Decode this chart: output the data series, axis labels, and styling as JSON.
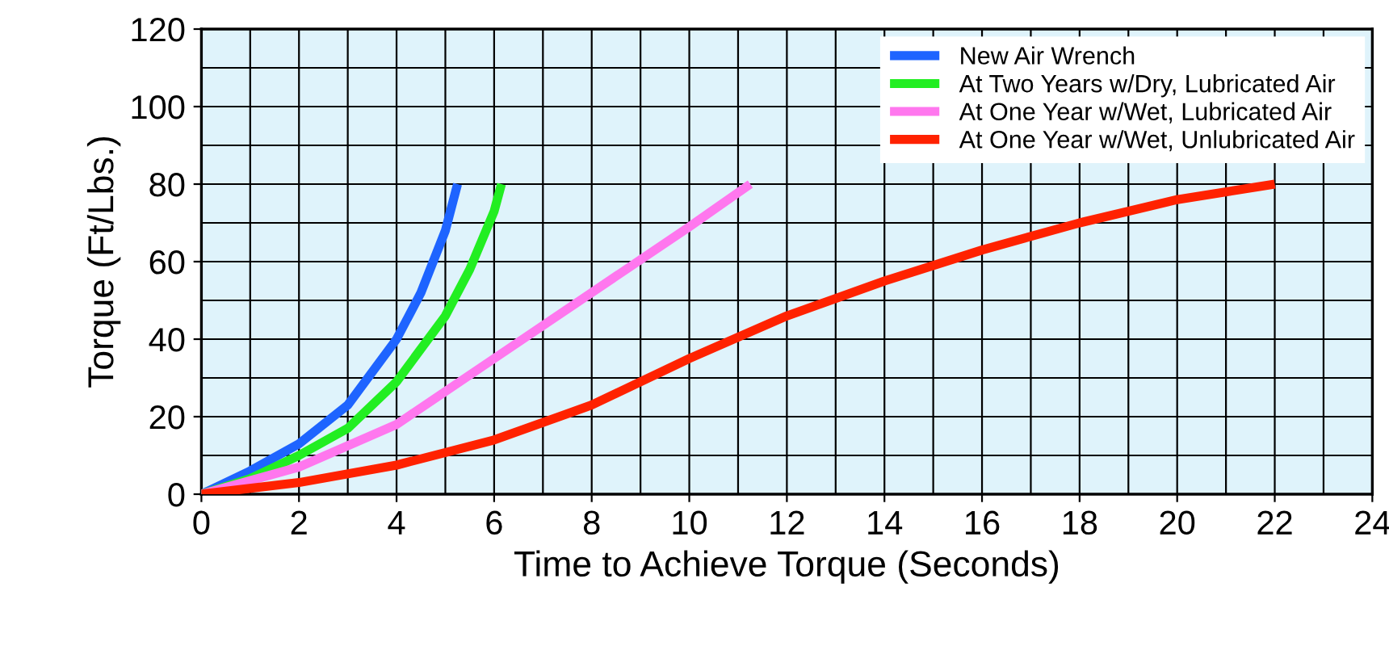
{
  "chart_data": {
    "type": "line",
    "xlabel": "Time to Achieve Torque (Seconds)",
    "ylabel": "Torque (Ft/Lbs.)",
    "xlim": [
      0,
      24
    ],
    "xticks": [
      0,
      2,
      4,
      6,
      8,
      10,
      12,
      14,
      16,
      18,
      20,
      22,
      24
    ],
    "ylim": [
      0,
      120
    ],
    "yticks": [
      0,
      20,
      40,
      60,
      80,
      100,
      120
    ],
    "grid": true,
    "legend": "top right",
    "marker": "none",
    "line_style": "solid",
    "series": [
      {
        "name": "New Air Wrench",
        "color": "#1e64ff",
        "x": [
          0,
          1,
          2,
          3,
          4,
          4.5,
          5,
          5.25
        ],
        "values": [
          0,
          6,
          13,
          23,
          40,
          52,
          68,
          80
        ]
      },
      {
        "name": "At Two Years w/Dry, Lubricated Air",
        "color": "#22ee22",
        "x": [
          0,
          1,
          2,
          3,
          4,
          5,
          5.5,
          6,
          6.15
        ],
        "values": [
          0,
          4,
          10,
          17,
          29,
          46,
          58,
          73,
          80
        ]
      },
      {
        "name": "At One Year w/Wet, Lubricated Air",
        "color": "#ff77ee",
        "x": [
          0,
          2,
          4,
          6,
          8,
          10,
          11.25
        ],
        "values": [
          0,
          7,
          18,
          35,
          52,
          69,
          80
        ]
      },
      {
        "name": "At One Year w/Wet, Unlubricated Air",
        "color": "#ff2200",
        "x": [
          0,
          2,
          4,
          6,
          8,
          10,
          12,
          14,
          16,
          18,
          20,
          22
        ],
        "values": [
          0,
          3,
          7.5,
          14,
          23,
          35,
          46,
          55,
          63,
          70,
          76,
          80
        ]
      }
    ]
  }
}
